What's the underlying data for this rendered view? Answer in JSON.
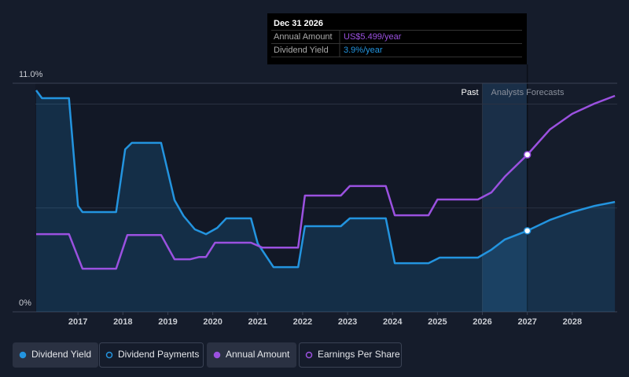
{
  "chart_data": {
    "type": "line",
    "xlim": [
      2016,
      2029
    ],
    "xticks": [
      2017,
      2018,
      2019,
      2020,
      2021,
      2022,
      2023,
      2024,
      2025,
      2026,
      2027,
      2028
    ],
    "ylim": [
      0,
      11
    ],
    "yticks": [
      {
        "value": 0,
        "label": "0%"
      },
      {
        "value": 11,
        "label": "11.0%"
      }
    ],
    "ygrid": [
      5,
      10
    ],
    "y2lim": [
      0,
      8
    ],
    "region_labels": [
      "Past",
      "Analysts Forecasts"
    ],
    "forecast_range": [
      2026,
      2027
    ],
    "series": [
      {
        "name": "Dividend Yield",
        "color": "#2394df",
        "area": true,
        "x": [
          2016.07,
          2016.2,
          2016.8,
          2017.0,
          2017.1,
          2017.85,
          2018.05,
          2018.2,
          2018.85,
          2019.15,
          2019.35,
          2019.6,
          2019.85,
          2020.1,
          2020.3,
          2020.85,
          2021.0,
          2021.35,
          2021.9,
          2022.05,
          2022.85,
          2023.05,
          2023.85,
          2024.05,
          2024.8,
          2025.05,
          2025.9,
          2026.2,
          2026.5,
          2027.0,
          2027.5,
          2028.0,
          2028.5,
          2028.95
        ],
        "values": [
          10.66,
          10.28,
          10.28,
          5.1,
          4.8,
          4.8,
          7.82,
          8.13,
          8.13,
          5.37,
          4.61,
          3.97,
          3.74,
          4.04,
          4.5,
          4.5,
          3.29,
          2.15,
          2.15,
          4.12,
          4.12,
          4.5,
          4.5,
          2.34,
          2.34,
          2.61,
          2.61,
          2.99,
          3.48,
          3.9,
          4.42,
          4.8,
          5.1,
          5.29
        ]
      },
      {
        "name": "Annual Amount",
        "color": "#9b51e0",
        "axis": "y2",
        "x": [
          2016.07,
          2016.8,
          2017.1,
          2017.85,
          2018.1,
          2018.85,
          2019.15,
          2019.5,
          2019.7,
          2019.85,
          2020.05,
          2020.85,
          2021.1,
          2021.9,
          2022.05,
          2022.85,
          2023.05,
          2023.85,
          2024.05,
          2024.8,
          2025.0,
          2025.9,
          2026.2,
          2026.5,
          2027.0,
          2027.5,
          2028.0,
          2028.5,
          2028.95
        ],
        "values": [
          2.72,
          2.72,
          1.51,
          1.51,
          2.69,
          2.69,
          1.84,
          1.84,
          1.92,
          1.92,
          2.42,
          2.42,
          2.25,
          2.25,
          4.07,
          4.07,
          4.4,
          4.4,
          3.38,
          3.38,
          3.93,
          3.93,
          4.18,
          4.73,
          5.499,
          6.38,
          6.93,
          7.29,
          7.56
        ]
      }
    ],
    "other_legend_entries": [
      "Dividend Payments",
      "Earnings Per Share"
    ],
    "tooltip": {
      "date": "Dec 31 2026",
      "rows": [
        [
          "Annual Amount",
          "US$5.499/year"
        ],
        [
          "Dividend Yield",
          "3.9%/year"
        ]
      ]
    }
  }
}
